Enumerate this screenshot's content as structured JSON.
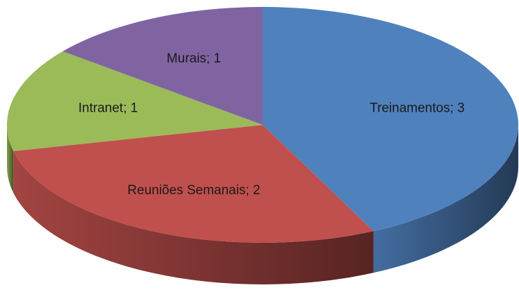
{
  "chart_data": {
    "type": "pie",
    "categories": [
      "Treinamentos",
      "Reuniões Semanais",
      "Intranet",
      "Murais"
    ],
    "values": [
      3,
      2,
      1,
      1
    ],
    "value_labels": [
      "Treinamentos; 3",
      "Reuniões Semanais; 2",
      "Intranet; 1",
      "Murais; 1"
    ],
    "colors": [
      "#4f81bd",
      "#c0504d",
      "#9bbb59",
      "#8064a2"
    ]
  }
}
